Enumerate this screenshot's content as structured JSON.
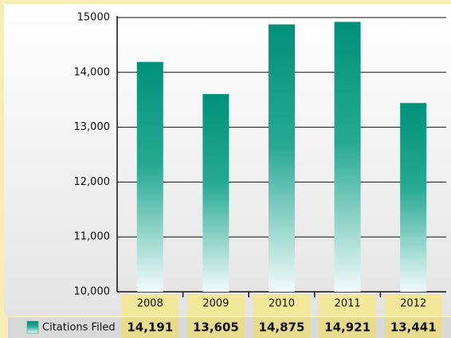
{
  "chart_data": {
    "type": "bar",
    "categories": [
      "2008",
      "2009",
      "2010",
      "2011",
      "2012"
    ],
    "series": [
      {
        "name": "Citations Filed",
        "color": "#00937a",
        "values": [
          14191,
          13605,
          14875,
          14921,
          13441
        ],
        "value_labels": [
          "14,191",
          "13,605",
          "14,875",
          "14,921",
          "13,441"
        ]
      }
    ],
    "ylim": [
      10000,
      15000
    ],
    "yticks": [
      {
        "value": 10000,
        "label": "10,000"
      },
      {
        "value": 11000,
        "label": "11,000"
      },
      {
        "value": 12000,
        "label": "12,000"
      },
      {
        "value": 13000,
        "label": "13,000"
      },
      {
        "value": 14000,
        "label": "14,000"
      },
      15000
    ],
    "grid": true
  }
}
